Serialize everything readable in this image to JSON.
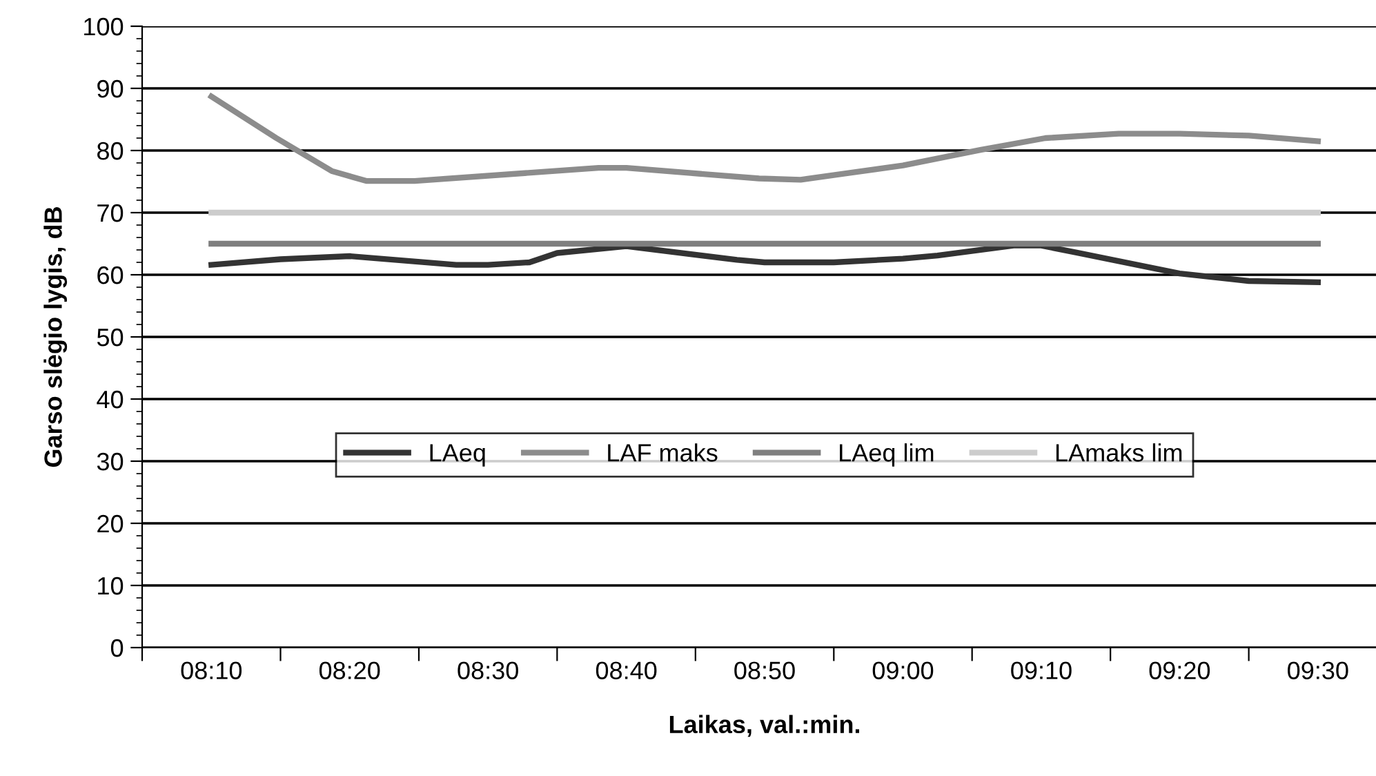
{
  "chart_data": {
    "type": "line",
    "xlabel": "Laikas, val.:min.",
    "ylabel": "Garso slėgio lygis, dB",
    "xlim": [
      8.0833,
      9.5833
    ],
    "xticks": [
      {
        "value": 8.0833,
        "label": null
      },
      {
        "value": 8.1667,
        "label": "08:10"
      },
      {
        "value": 8.25,
        "label": null
      },
      {
        "value": 8.3333,
        "label": "08:20"
      },
      {
        "value": 8.4167,
        "label": null
      },
      {
        "value": 8.5,
        "label": "08:30"
      },
      {
        "value": 8.5833,
        "label": null
      },
      {
        "value": 8.6667,
        "label": "08:40"
      },
      {
        "value": 8.75,
        "label": null
      },
      {
        "value": 8.8333,
        "label": "08:50"
      },
      {
        "value": 8.9167,
        "label": null
      },
      {
        "value": 9.0,
        "label": "09:00"
      },
      {
        "value": 9.0833,
        "label": null
      },
      {
        "value": 9.1667,
        "label": "09:10"
      },
      {
        "value": 9.25,
        "label": null
      },
      {
        "value": 9.3333,
        "label": "09:20"
      },
      {
        "value": 9.4167,
        "label": null
      },
      {
        "value": 9.5,
        "label": "09:30"
      },
      {
        "value": 9.5833,
        "label": null
      }
    ],
    "ylim": [
      0,
      100
    ],
    "yticks": [
      0,
      10,
      20,
      30,
      40,
      50,
      60,
      70,
      80,
      90,
      100
    ],
    "grid": "y",
    "legend": "center",
    "marker": "none",
    "line_style": "solid",
    "series": [
      {
        "name": "LAeq",
        "color": "#333333",
        "x": [
          8.1667,
          8.25,
          8.3333,
          8.4617,
          8.5,
          8.55,
          8.5833,
          8.6667,
          8.8,
          8.8333,
          8.9167,
          9.0,
          9.0417,
          9.1333,
          9.1667,
          9.2083,
          9.3333,
          9.4167,
          9.5
        ],
        "values": [
          61.6,
          62.5,
          63.0,
          61.6,
          61.6,
          62.0,
          63.5,
          64.6,
          62.4,
          62.0,
          62.0,
          62.6,
          63.1,
          64.7,
          64.7,
          63.6,
          60.2,
          59.0,
          58.8
        ]
      },
      {
        "name": "LAF maks",
        "color": "#8c8c8c",
        "x": [
          8.1667,
          8.245,
          8.3117,
          8.3533,
          8.4117,
          8.6333,
          8.6667,
          8.8267,
          8.8767,
          9.0,
          9.0933,
          9.1717,
          9.26,
          9.3333,
          9.4167,
          9.5
        ],
        "values": [
          88.7,
          82.0,
          76.7,
          75.1,
          75.1,
          77.2,
          77.2,
          75.5,
          75.3,
          77.6,
          80.1,
          82.0,
          82.7,
          82.7,
          82.4,
          81.5
        ]
      },
      {
        "name": "LAeq lim",
        "color": "#7f7f7f",
        "x": [
          8.1667,
          9.5
        ],
        "values": [
          65,
          65
        ]
      },
      {
        "name": "LAmaks lim",
        "color": "#cccccc",
        "x": [
          8.1667,
          9.5
        ],
        "values": [
          70,
          70
        ]
      }
    ]
  }
}
